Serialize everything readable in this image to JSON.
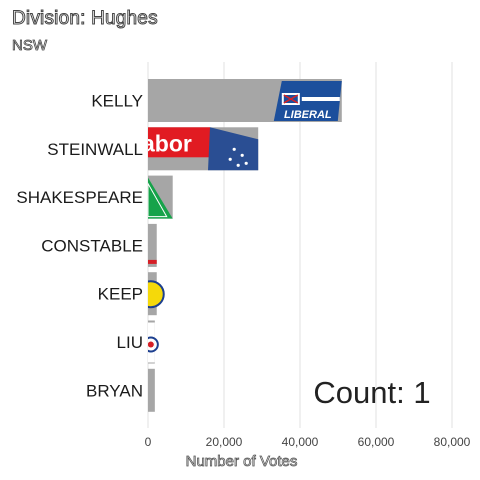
{
  "title": "Division: Hughes",
  "subtitle": "NSW",
  "counter": "Count:  1",
  "chart_data": {
    "type": "bar",
    "orientation": "horizontal",
    "categories": [
      "KELLY",
      "STEINWALL",
      "SHAKESPEARE",
      "CONSTABLE",
      "KEEP",
      "LIU",
      "BRYAN"
    ],
    "values": [
      51000,
      29000,
      6500,
      2300,
      2300,
      1800,
      1800
    ],
    "xlabel": "Number of Votes",
    "ylabel": "",
    "xlim": [
      0,
      80000
    ],
    "xticks": [
      0,
      20000,
      40000,
      60000,
      80000
    ],
    "xtick_labels": [
      "0",
      "20,000",
      "40,000",
      "60,000",
      "80,000"
    ],
    "bar_color": "#a6a6a6",
    "grid": true,
    "party_logo_text": {
      "KELLY": "LIBERAL",
      "STEINWALL": "Labor"
    }
  }
}
